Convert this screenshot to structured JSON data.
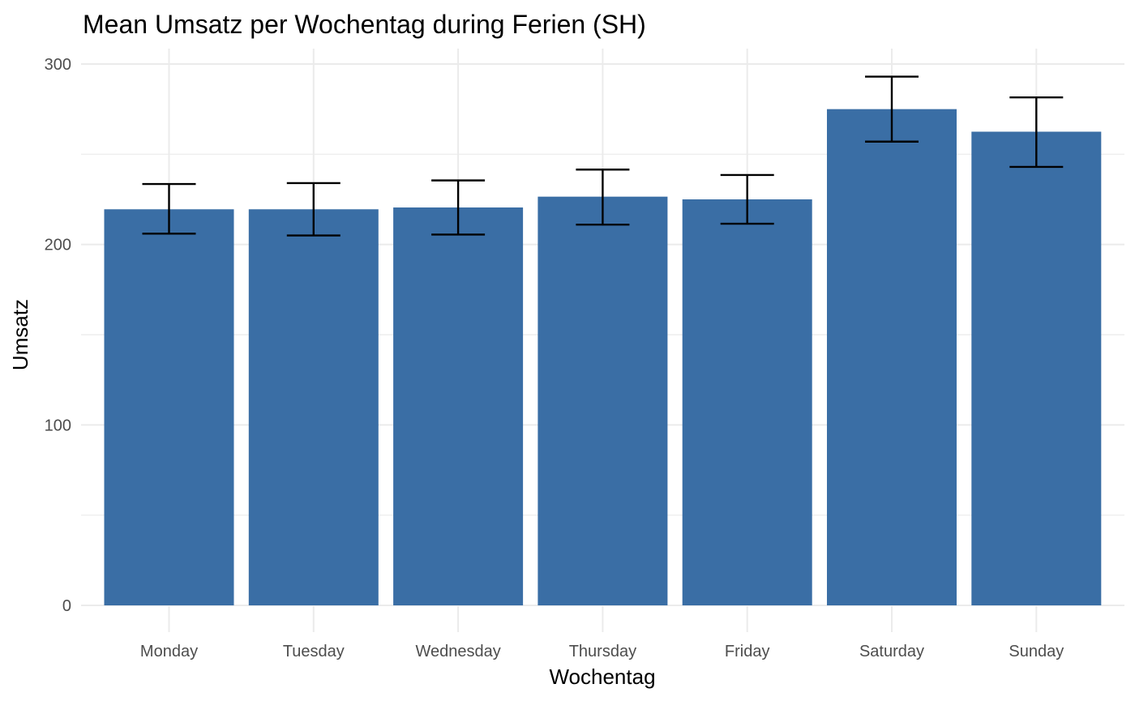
{
  "chart_data": {
    "type": "bar",
    "title": "Mean Umsatz per Wochentag during Ferien (SH)",
    "xlabel": "Wochentag",
    "ylabel": "Umsatz",
    "categories": [
      "Monday",
      "Tuesday",
      "Wednesday",
      "Thursday",
      "Friday",
      "Saturday",
      "Sunday"
    ],
    "values": [
      219.5,
      219.5,
      220.5,
      226.5,
      225.0,
      275.0,
      262.5
    ],
    "error_lower": [
      206.0,
      205.0,
      205.5,
      211.0,
      211.5,
      257.0,
      243.0
    ],
    "error_upper": [
      233.5,
      234.0,
      235.5,
      241.5,
      238.5,
      293.0,
      281.5
    ],
    "ylim": [
      0,
      300
    ],
    "yticks": [
      0,
      100,
      200,
      300
    ],
    "grid": true,
    "legend": "none",
    "bar_color": "#3a6ea5",
    "error_color": "#000000"
  }
}
